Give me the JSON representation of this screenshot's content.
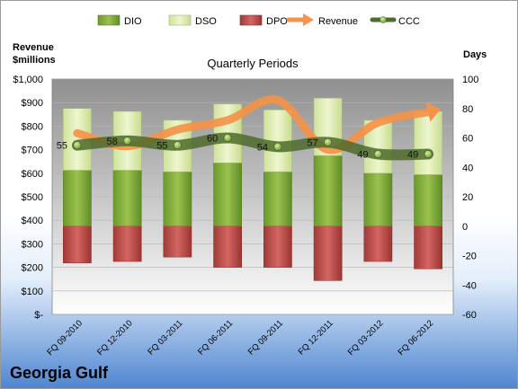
{
  "company_name": "Georgia Gulf",
  "left_axis_title_line1": "Revenue",
  "left_axis_title_line2": "$millions",
  "right_axis_title": "Days",
  "colors": {
    "dio": "#7ea83a",
    "dso": "#d7e7a6",
    "dpo": "#c0504d",
    "revenue": "#f4934a",
    "ccc": "#4e6b2c"
  },
  "chart_data": {
    "type": "bar",
    "title": "Quarterly Periods",
    "categories": [
      "FQ 09-2010",
      "FQ 12-2010",
      "FQ 03-2011",
      "FQ 06-2011",
      "FQ 09-2011",
      "FQ 12-2011",
      "FQ 03-2012",
      "FQ 06-2012"
    ],
    "legend": {
      "placement": "top",
      "entries": [
        "DIO",
        "DSO",
        "DPO",
        "Revenue",
        "CCC"
      ]
    },
    "left_axis": {
      "ylim": [
        0,
        1000
      ],
      "ticks": [
        "$-",
        "$100",
        "$200",
        "$300",
        "$400",
        "$500",
        "$600",
        "$700",
        "$800",
        "$900",
        "$1,000"
      ]
    },
    "right_axis": {
      "ylim": [
        -60,
        100
      ],
      "ticks": [
        "-60",
        "-40",
        "-20",
        "0",
        "20",
        "40",
        "60",
        "80",
        "100"
      ]
    },
    "grid": true,
    "series": [
      {
        "name": "DIO",
        "axis": "right",
        "kind": "stacked-bar-positive",
        "values": [
          38,
          38,
          37,
          43,
          37,
          48,
          36,
          35
        ]
      },
      {
        "name": "DSO",
        "axis": "right",
        "kind": "stacked-bar-positive",
        "values": [
          42,
          40,
          35,
          40,
          42,
          39,
          36,
          43
        ]
      },
      {
        "name": "DPO",
        "axis": "right",
        "kind": "stacked-bar-negative",
        "values": [
          -25,
          -24,
          -21,
          -28,
          -28,
          -37,
          -24,
          -29
        ]
      },
      {
        "name": "Revenue",
        "axis": "left",
        "kind": "line",
        "values": [
          770,
          715,
          785,
          825,
          910,
          700,
          815,
          860
        ]
      },
      {
        "name": "CCC",
        "axis": "right",
        "kind": "line",
        "values": [
          55,
          58,
          55,
          60,
          54,
          57,
          49,
          49
        ],
        "labels": [
          "55",
          "58",
          "55",
          "60",
          "54",
          "57",
          "49",
          "49"
        ]
      }
    ]
  }
}
